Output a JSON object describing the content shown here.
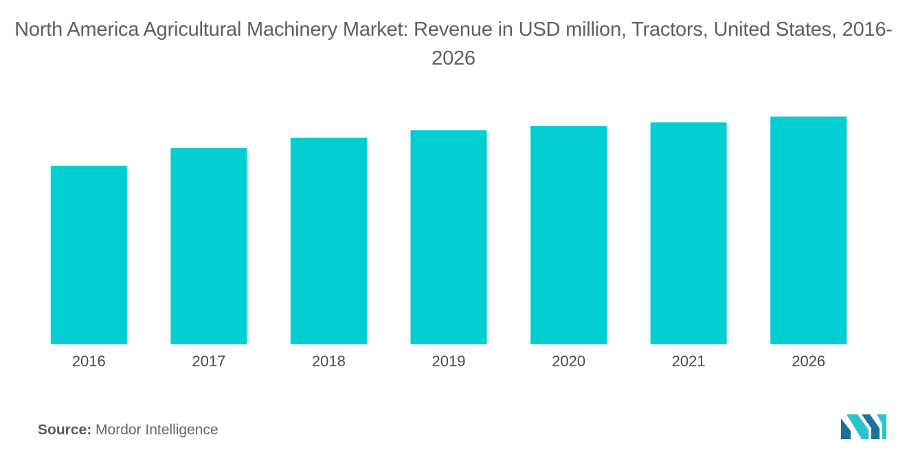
{
  "title": "North America Agricultural Machinery Market: Revenue in USD million, Tractors, United States, 2016-2026",
  "source": {
    "label": "Source:",
    "value": "Mordor Intelligence"
  },
  "logo": {
    "icon": "mordor-intelligence-logo",
    "colors": [
      "#1b6f9b",
      "#2bc4c9"
    ]
  },
  "colors": {
    "bar": "#00ced1"
  },
  "chart_data": {
    "type": "bar",
    "categories": [
      "2016",
      "2017",
      "2018",
      "2019",
      "2020",
      "2021",
      "2026"
    ],
    "values": [
      210,
      231,
      243,
      252,
      257,
      261,
      268
    ],
    "title": "North America Agricultural Machinery Market: Revenue in USD million, Tractors, United States, 2016-2026",
    "xlabel": "",
    "ylabel": "",
    "ylim": [
      0,
      300
    ],
    "grid": false,
    "legend": "none",
    "y_axis_visible": false
  }
}
